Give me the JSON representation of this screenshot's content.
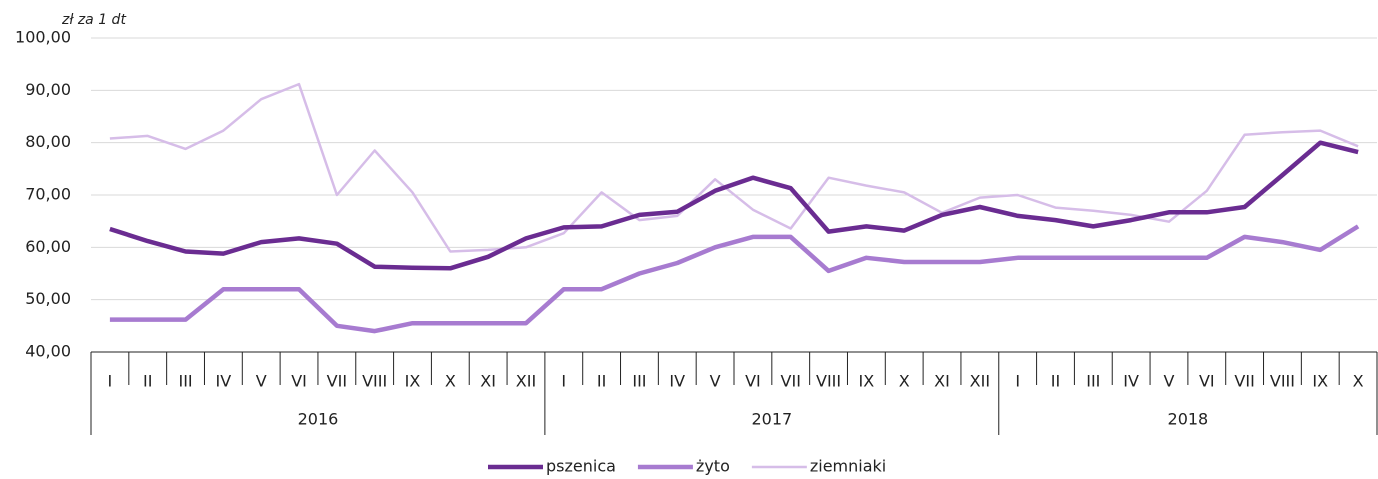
{
  "chart_data": {
    "type": "line",
    "y_label": "zł za 1 dt",
    "categories": [
      "I",
      "II",
      "III",
      "IV",
      "V",
      "VI",
      "VII",
      "VIII",
      "IX",
      "X",
      "XI",
      "XII",
      "I",
      "II",
      "III",
      "IV",
      "V",
      "VI",
      "VII",
      "VIII",
      "IX",
      "X",
      "XI",
      "XII",
      "I",
      "II",
      "III",
      "IV",
      "V",
      "VI",
      "VII",
      "VIII",
      "IX",
      "X"
    ],
    "year_groups": [
      {
        "name": "2016",
        "months": 12
      },
      {
        "name": "2017",
        "months": 12
      },
      {
        "name": "2018",
        "months": 10
      }
    ],
    "series": [
      {
        "name": "pszenica",
        "color": "#6a2c91",
        "values": [
          63.5,
          61.2,
          59.2,
          58.8,
          61,
          61.7,
          60.7,
          56.3,
          56.1,
          56,
          58.2,
          61.7,
          63.8,
          64,
          66.2,
          66.8,
          70.8,
          73.3,
          71.3,
          63,
          64,
          63.2,
          66.2,
          67.7,
          66,
          65.2,
          64,
          65.2,
          66.7,
          66.7,
          67.7,
          73.8,
          80,
          78.2
        ]
      },
      {
        "name": "żyto",
        "color": "#a77bd0",
        "values": [
          46.2,
          46.2,
          46.2,
          52,
          52,
          52,
          45,
          44,
          45.5,
          45.5,
          45.5,
          45.5,
          52,
          52,
          55,
          57,
          60,
          62,
          62,
          55.5,
          58,
          57.2,
          57.2,
          57.2,
          58,
          58,
          58,
          58,
          58,
          58,
          62,
          61,
          59.5,
          64
        ]
      },
      {
        "name": "ziemniaki",
        "color": "#d6bde8",
        "values": [
          80.8,
          81.3,
          78.8,
          82.3,
          88.3,
          91.2,
          70,
          78.5,
          70.5,
          59.2,
          59.5,
          60,
          62.7,
          70.5,
          65.2,
          66,
          73,
          67.2,
          63.6,
          73.3,
          71.8,
          70.5,
          66.6,
          69.5,
          70,
          67.6,
          67,
          66.2,
          64.9,
          70.8,
          81.5,
          82,
          82.3,
          79.3
        ]
      }
    ],
    "ylim": [
      40,
      100
    ],
    "yticks": [
      {
        "value": 40,
        "label": "40,00"
      },
      {
        "value": 50,
        "label": "50,00"
      },
      {
        "value": 60,
        "label": "60,00"
      },
      {
        "value": 70,
        "label": "70,00"
      },
      {
        "value": 80,
        "label": "80,00"
      },
      {
        "value": 90,
        "label": "90,00"
      },
      {
        "value": 100,
        "label": "100,00"
      }
    ],
    "grid": true,
    "legend": "bottom"
  }
}
